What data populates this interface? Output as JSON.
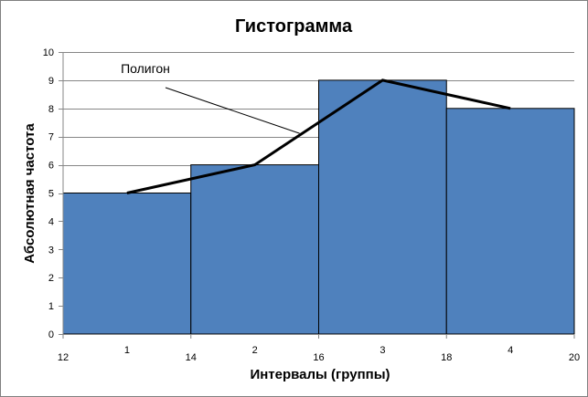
{
  "chart_data": {
    "type": "bar",
    "title": "Гистограмма",
    "xlabel": "Интервалы (группы)",
    "ylabel": "Абсолютная частота",
    "ylim": [
      0,
      10
    ],
    "yticks": [
      "0",
      "1",
      "2",
      "3",
      "4",
      "5",
      "6",
      "7",
      "8",
      "9",
      "10"
    ],
    "x_boundaries": [
      12,
      14,
      16,
      18,
      20
    ],
    "categories": [
      "1",
      "2",
      "3",
      "4"
    ],
    "values": [
      5,
      6,
      9,
      8
    ],
    "polygon": {
      "label": "Полигон",
      "values": [
        5,
        6,
        9,
        8
      ]
    },
    "grid": true,
    "bar_color": "#4F81BD",
    "grid_color": "#868686"
  }
}
